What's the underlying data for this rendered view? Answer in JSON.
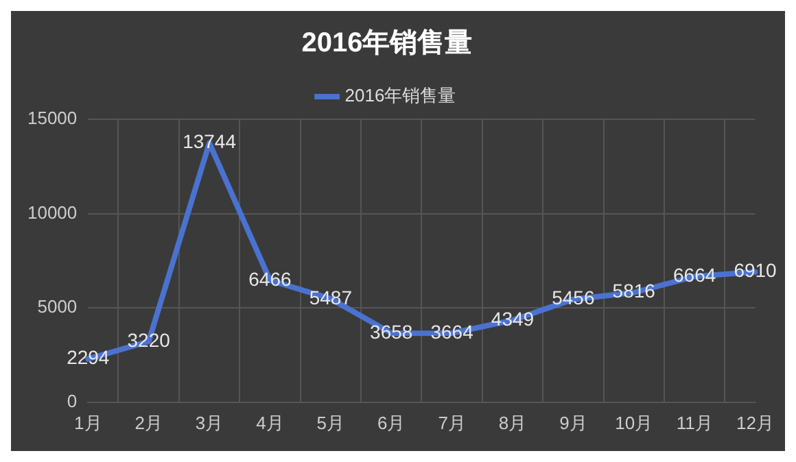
{
  "chart_data": {
    "type": "line",
    "title": "2016年销售量",
    "categories": [
      "1月",
      "2月",
      "3月",
      "4月",
      "5月",
      "6月",
      "7月",
      "8月",
      "9月",
      "10月",
      "11月",
      "12月"
    ],
    "series": [
      {
        "name": "2016年销售量",
        "color": "#4a72d0",
        "values": [
          2294,
          3220,
          13744,
          6466,
          5487,
          3658,
          3664,
          4349,
          5456,
          5816,
          6664,
          6910
        ]
      }
    ],
    "ylim": [
      0,
      15000
    ],
    "yticks": [
      0,
      5000,
      10000,
      15000
    ],
    "grid": true,
    "legend": "top",
    "data_labels": true,
    "marker": "none",
    "line_style": "solid"
  }
}
